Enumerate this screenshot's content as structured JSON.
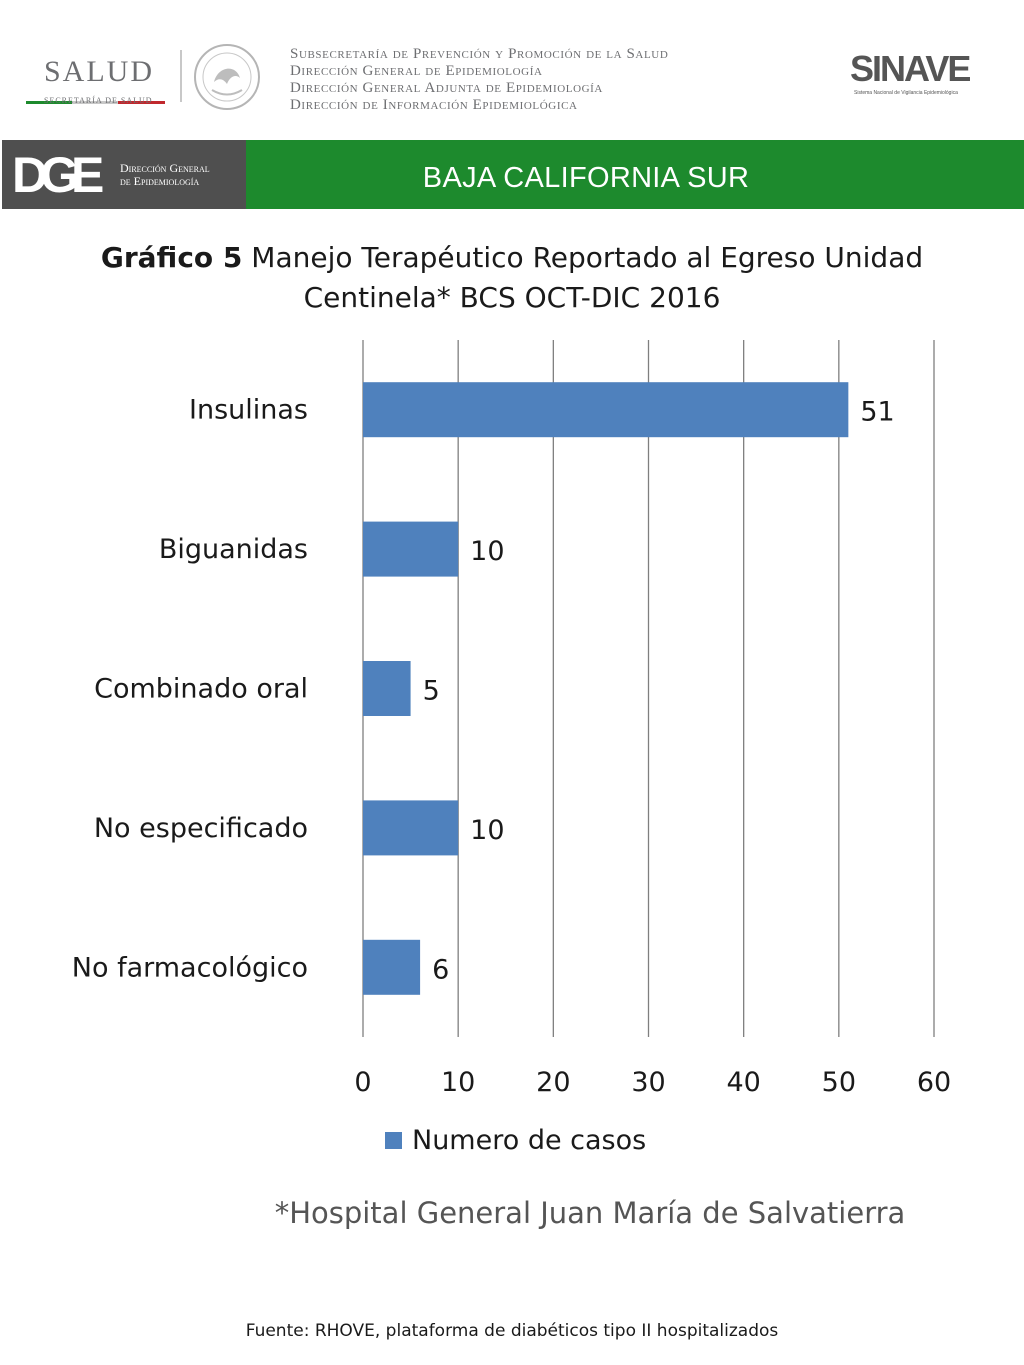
{
  "header": {
    "salud_logo_text": "SALUD",
    "salud_logo_subtext": "SECRETARÍA DE SALUD",
    "dependencies": [
      "Subsecretaría de Prevención y Promoción de la Salud",
      "Dirección General de Epidemiología",
      "Dirección General Adjunta de Epidemiología",
      "Dirección de Información Epidemiológica"
    ],
    "sinave_logo_text": "SINAVE",
    "sinave_caption": "Sistema Nacional de Vigilancia Epidemiológica"
  },
  "band": {
    "dge_mark": "DGE",
    "dge_text_line1": "Dirección General",
    "dge_text_line2": "de Epidemiología",
    "state": "BAJA CALIFORNIA SUR"
  },
  "chart_data": {
    "type": "bar",
    "orientation": "horizontal",
    "title_prefix": "Gráfico 5",
    "title": "Manejo Terapéutico Reportado al Egreso Unidad Centinela* BCS OCT-DIC 2016",
    "categories": [
      "Insulinas",
      "Biguanidas",
      "Combinado oral",
      "No especificado",
      "No farmacológico"
    ],
    "series": [
      {
        "name": "Numero de casos",
        "values": [
          51,
          10,
          5,
          10,
          6
        ],
        "color": "#4f81bd"
      }
    ],
    "xlim": [
      0,
      60
    ],
    "x_ticks": [
      0,
      10,
      20,
      30,
      40,
      50,
      60
    ],
    "grid": "vertical",
    "data_labels": true,
    "legend": "bottom"
  },
  "colors": {
    "green_band": "#1d8a2d",
    "dark_band": "#4f4f4f",
    "bar": "#4f81bd",
    "gridline": "#7f7f7f"
  },
  "footer": {
    "note": "*Hospital General Juan María de Salvatierra",
    "source": "Fuente: RHOVE, plataforma de diabéticos tipo II hospitalizados"
  }
}
